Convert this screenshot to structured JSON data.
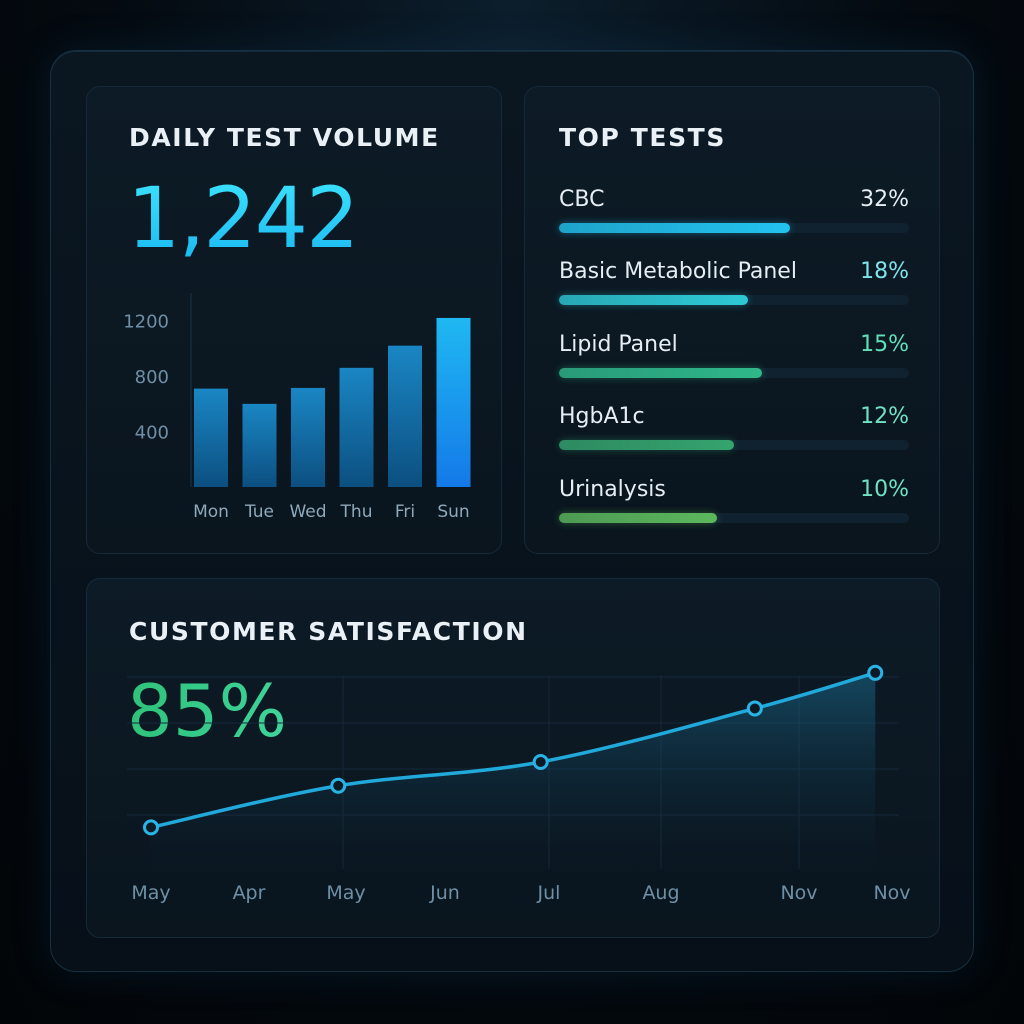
{
  "colors": {
    "accent_cyan": "#22c3f0",
    "accent_green": "#3ccf88",
    "background": "#050b11"
  },
  "volume_card": {
    "title": "DAILY TEST VOLUME",
    "total": "1,242"
  },
  "top_tests_card": {
    "title": "TOP TESTS",
    "tests": [
      {
        "name": "CBC",
        "percent_label": "32%",
        "bar_fill": 0.66,
        "color": "#22c3f0",
        "label_color": "#e6eef3"
      },
      {
        "name": "Basic Metabolic Panel",
        "percent_label": "18%",
        "bar_fill": 0.54,
        "color": "#2ec9d6",
        "label_color": "#7fe3ea"
      },
      {
        "name": "Lipid Panel",
        "percent_label": "15%",
        "bar_fill": 0.58,
        "color": "#2fb88a",
        "label_color": "#5fe0b8"
      },
      {
        "name": "HgbA1c",
        "percent_label": "12%",
        "bar_fill": 0.5,
        "color": "#35a46e",
        "label_color": "#6fe2c2"
      },
      {
        "name": "Urinalysis",
        "percent_label": "10%",
        "bar_fill": 0.45,
        "color": "#5cb85c",
        "label_color": "#6fe2c2"
      }
    ]
  },
  "satisfaction_card": {
    "title": "CUSTOMER SATISFACTION",
    "value": "85%"
  },
  "chart_data": [
    {
      "type": "bar",
      "title": "",
      "categories": [
        "Mon",
        "Tue",
        "Wed",
        "Thu",
        "Fri",
        "Sun"
      ],
      "values": [
        710,
        600,
        715,
        860,
        1020,
        1220
      ],
      "y_ticks": [
        "400",
        "800",
        "1200"
      ],
      "y_tick_values": [
        400,
        800,
        1200
      ],
      "ylim": [
        0,
        1400
      ],
      "grid": false
    },
    {
      "type": "line",
      "title": "",
      "x_labels": [
        "May",
        "Apr",
        "May",
        "Jun",
        "Jul",
        "Aug",
        "Nov",
        "Nov"
      ],
      "points": [
        {
          "x": 0,
          "y": 62
        },
        {
          "x": 1.92,
          "y": 69
        },
        {
          "x": 3.92,
          "y": 73
        },
        {
          "x": 5.68,
          "y": 82
        },
        {
          "x": 6.82,
          "y": 88
        }
      ],
      "ylim": [
        55,
        92
      ],
      "grid": true,
      "area_fill": true
    }
  ]
}
